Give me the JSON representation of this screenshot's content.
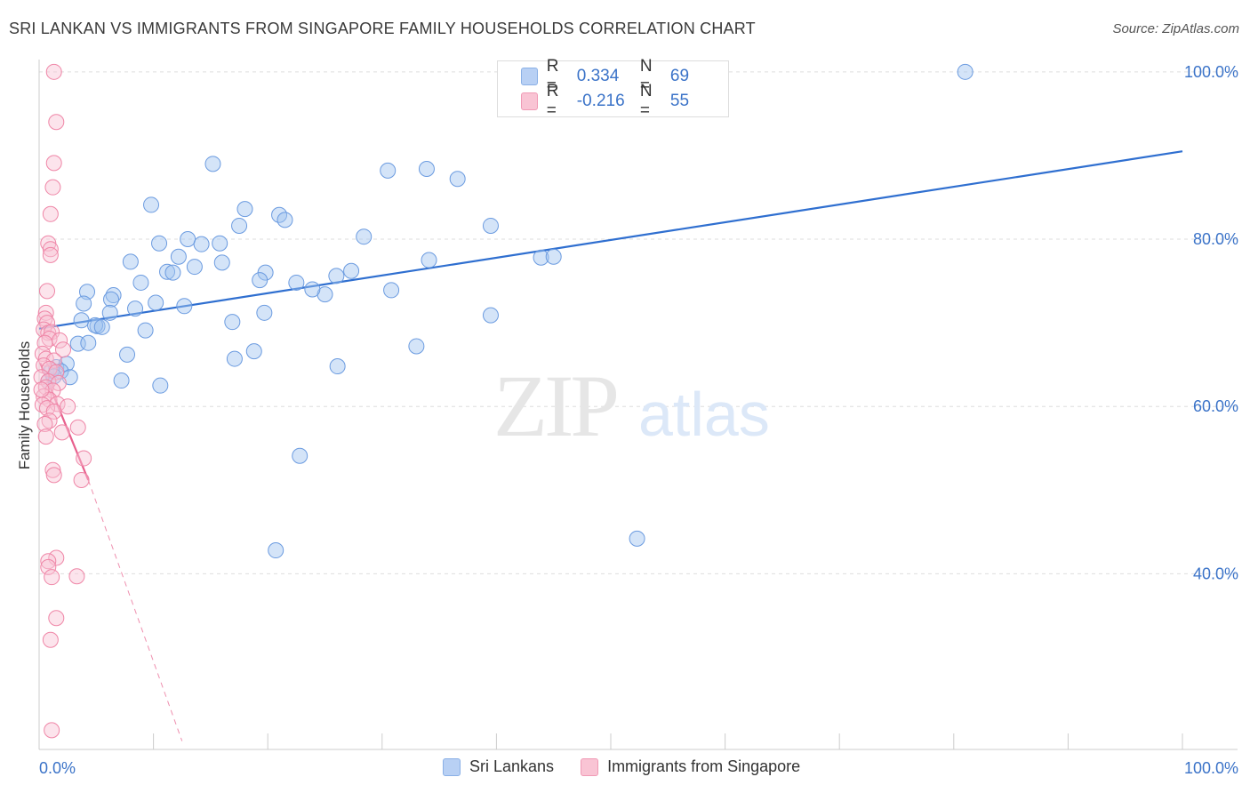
{
  "header": {
    "title": "SRI LANKAN VS IMMIGRANTS FROM SINGAPORE FAMILY HOUSEHOLDS CORRELATION CHART",
    "source": "Source: ZipAtlas.com"
  },
  "watermark": {
    "zip": "ZIP",
    "atlas": "atlas"
  },
  "legend": {
    "rows": [
      {
        "r_label": "R =",
        "r_value": "0.334",
        "n_label": "N =",
        "n_value": "69",
        "color": "#b8d0f4"
      },
      {
        "r_label": "R =",
        "r_value": "-0.216",
        "n_label": "N =",
        "n_value": "55",
        "color": "#f9c4d4"
      }
    ]
  },
  "bottom_legend": {
    "series1": "Sri Lankans",
    "series2": "Immigrants from Singapore"
  },
  "chart_data": {
    "type": "scatter",
    "title": "SRI LANKAN VS IMMIGRANTS FROM SINGAPORE FAMILY HOUSEHOLDS CORRELATION CHART",
    "xlabel": "",
    "ylabel": "Family Households",
    "xlim": [
      0,
      100
    ],
    "ylim": [
      19,
      102
    ],
    "x_tick_labels": [
      "0.0%",
      "100.0%"
    ],
    "y_ticks": [
      40,
      60,
      80,
      100
    ],
    "y_tick_labels": [
      "40.0%",
      "60.0%",
      "80.0%",
      "100.0%"
    ],
    "grid": true,
    "series": [
      {
        "name": "Sri Lankans",
        "color": "#6b9be0",
        "fill": "rgba(160,195,240,0.45)",
        "trend": {
          "x0": 0,
          "y0": 69.3,
          "x1": 100,
          "y1": 90.5,
          "color": "#2f6fd0"
        },
        "points": [
          [
            81,
            100
          ],
          [
            15.2,
            89
          ],
          [
            30.5,
            88.2
          ],
          [
            33.9,
            88.4
          ],
          [
            36.6,
            87.2
          ],
          [
            9.8,
            84.1
          ],
          [
            18,
            83.6
          ],
          [
            21,
            82.9
          ],
          [
            21.5,
            82.3
          ],
          [
            39.5,
            81.6
          ],
          [
            17.5,
            81.6
          ],
          [
            28.4,
            80.3
          ],
          [
            13,
            80
          ],
          [
            10.5,
            79.5
          ],
          [
            14.2,
            79.4
          ],
          [
            15.8,
            79.5
          ],
          [
            12.2,
            77.9
          ],
          [
            43.9,
            77.8
          ],
          [
            8,
            77.3
          ],
          [
            16,
            77.2
          ],
          [
            34.1,
            77.5
          ],
          [
            13.6,
            76.7
          ],
          [
            11.2,
            76.1
          ],
          [
            11.7,
            76
          ],
          [
            19.8,
            76
          ],
          [
            27.3,
            76.2
          ],
          [
            26,
            75.6
          ],
          [
            19.3,
            75.1
          ],
          [
            8.9,
            74.8
          ],
          [
            22.5,
            74.8
          ],
          [
            25,
            73.4
          ],
          [
            23.9,
            74
          ],
          [
            4.2,
            73.7
          ],
          [
            30.8,
            73.9
          ],
          [
            6.5,
            73.3
          ],
          [
            6.3,
            72.8
          ],
          [
            10.2,
            72.4
          ],
          [
            3.9,
            72.3
          ],
          [
            12.7,
            72
          ],
          [
            8.4,
            71.7
          ],
          [
            6.2,
            71.2
          ],
          [
            19.7,
            71.2
          ],
          [
            39.5,
            70.9
          ],
          [
            3.7,
            70.3
          ],
          [
            16.9,
            70.1
          ],
          [
            5.1,
            69.6
          ],
          [
            4.9,
            69.7
          ],
          [
            5.5,
            69.5
          ],
          [
            9.3,
            69.1
          ],
          [
            3.4,
            67.5
          ],
          [
            4.3,
            67.6
          ],
          [
            33,
            67.2
          ],
          [
            18.8,
            66.6
          ],
          [
            7.7,
            66.2
          ],
          [
            17.1,
            65.7
          ],
          [
            1.5,
            64.7
          ],
          [
            2.4,
            65.1
          ],
          [
            1.9,
            64.2
          ],
          [
            1.1,
            64.3
          ],
          [
            26.1,
            64.8
          ],
          [
            1.3,
            63.6
          ],
          [
            2.7,
            63.5
          ],
          [
            7.2,
            63.1
          ],
          [
            10.6,
            62.5
          ],
          [
            0.8,
            63
          ],
          [
            22.8,
            54.1
          ],
          [
            52.3,
            44.2
          ],
          [
            20.7,
            42.8
          ],
          [
            45,
            77.9
          ]
        ]
      },
      {
        "name": "Immigrants from Singapore",
        "color": "#ef86a7",
        "fill": "rgba(249,196,212,0.45)",
        "trend": {
          "x0": 0.1,
          "y0": 65.2,
          "x1": 4.3,
          "y1": 51.2,
          "dash_x1": 12.5,
          "dash_y1": 20,
          "color": "#e8608d"
        },
        "points": [
          [
            1.3,
            100
          ],
          [
            1.5,
            94
          ],
          [
            1.3,
            89.1
          ],
          [
            1.2,
            86.2
          ],
          [
            1,
            83
          ],
          [
            0.8,
            79.5
          ],
          [
            1,
            78.8
          ],
          [
            1,
            78.1
          ],
          [
            0.7,
            73.8
          ],
          [
            0.6,
            71.2
          ],
          [
            0.5,
            70.5
          ],
          [
            0.7,
            70
          ],
          [
            0.4,
            69.2
          ],
          [
            0.8,
            68.8
          ],
          [
            1.1,
            68.9
          ],
          [
            0.9,
            68.1
          ],
          [
            0.5,
            67.6
          ],
          [
            1.8,
            67.9
          ],
          [
            2.1,
            66.8
          ],
          [
            0.3,
            66.3
          ],
          [
            0.6,
            65.7
          ],
          [
            1.3,
            65.5
          ],
          [
            0.4,
            64.9
          ],
          [
            0.9,
            64.5
          ],
          [
            1.5,
            64.1
          ],
          [
            0.2,
            63.5
          ],
          [
            0.8,
            63
          ],
          [
            1.7,
            62.8
          ],
          [
            0.6,
            62.3
          ],
          [
            1.2,
            61.9
          ],
          [
            0.4,
            61.2
          ],
          [
            0.9,
            60.8
          ],
          [
            0.3,
            60.2
          ],
          [
            1.6,
            60.3
          ],
          [
            0.7,
            59.8
          ],
          [
            1.3,
            59.4
          ],
          [
            2.5,
            60
          ],
          [
            0.9,
            58.3
          ],
          [
            0.5,
            57.9
          ],
          [
            3.4,
            57.5
          ],
          [
            2,
            56.9
          ],
          [
            0.6,
            56.4
          ],
          [
            3.9,
            53.8
          ],
          [
            1.2,
            52.4
          ],
          [
            1.3,
            51.8
          ],
          [
            3.7,
            51.2
          ],
          [
            1.5,
            41.9
          ],
          [
            0.8,
            41.5
          ],
          [
            0.8,
            40.8
          ],
          [
            3.3,
            39.7
          ],
          [
            1.1,
            39.6
          ],
          [
            1.5,
            34.7
          ],
          [
            1,
            32.1
          ],
          [
            1.1,
            21.3
          ],
          [
            0.2,
            62
          ]
        ]
      }
    ]
  }
}
